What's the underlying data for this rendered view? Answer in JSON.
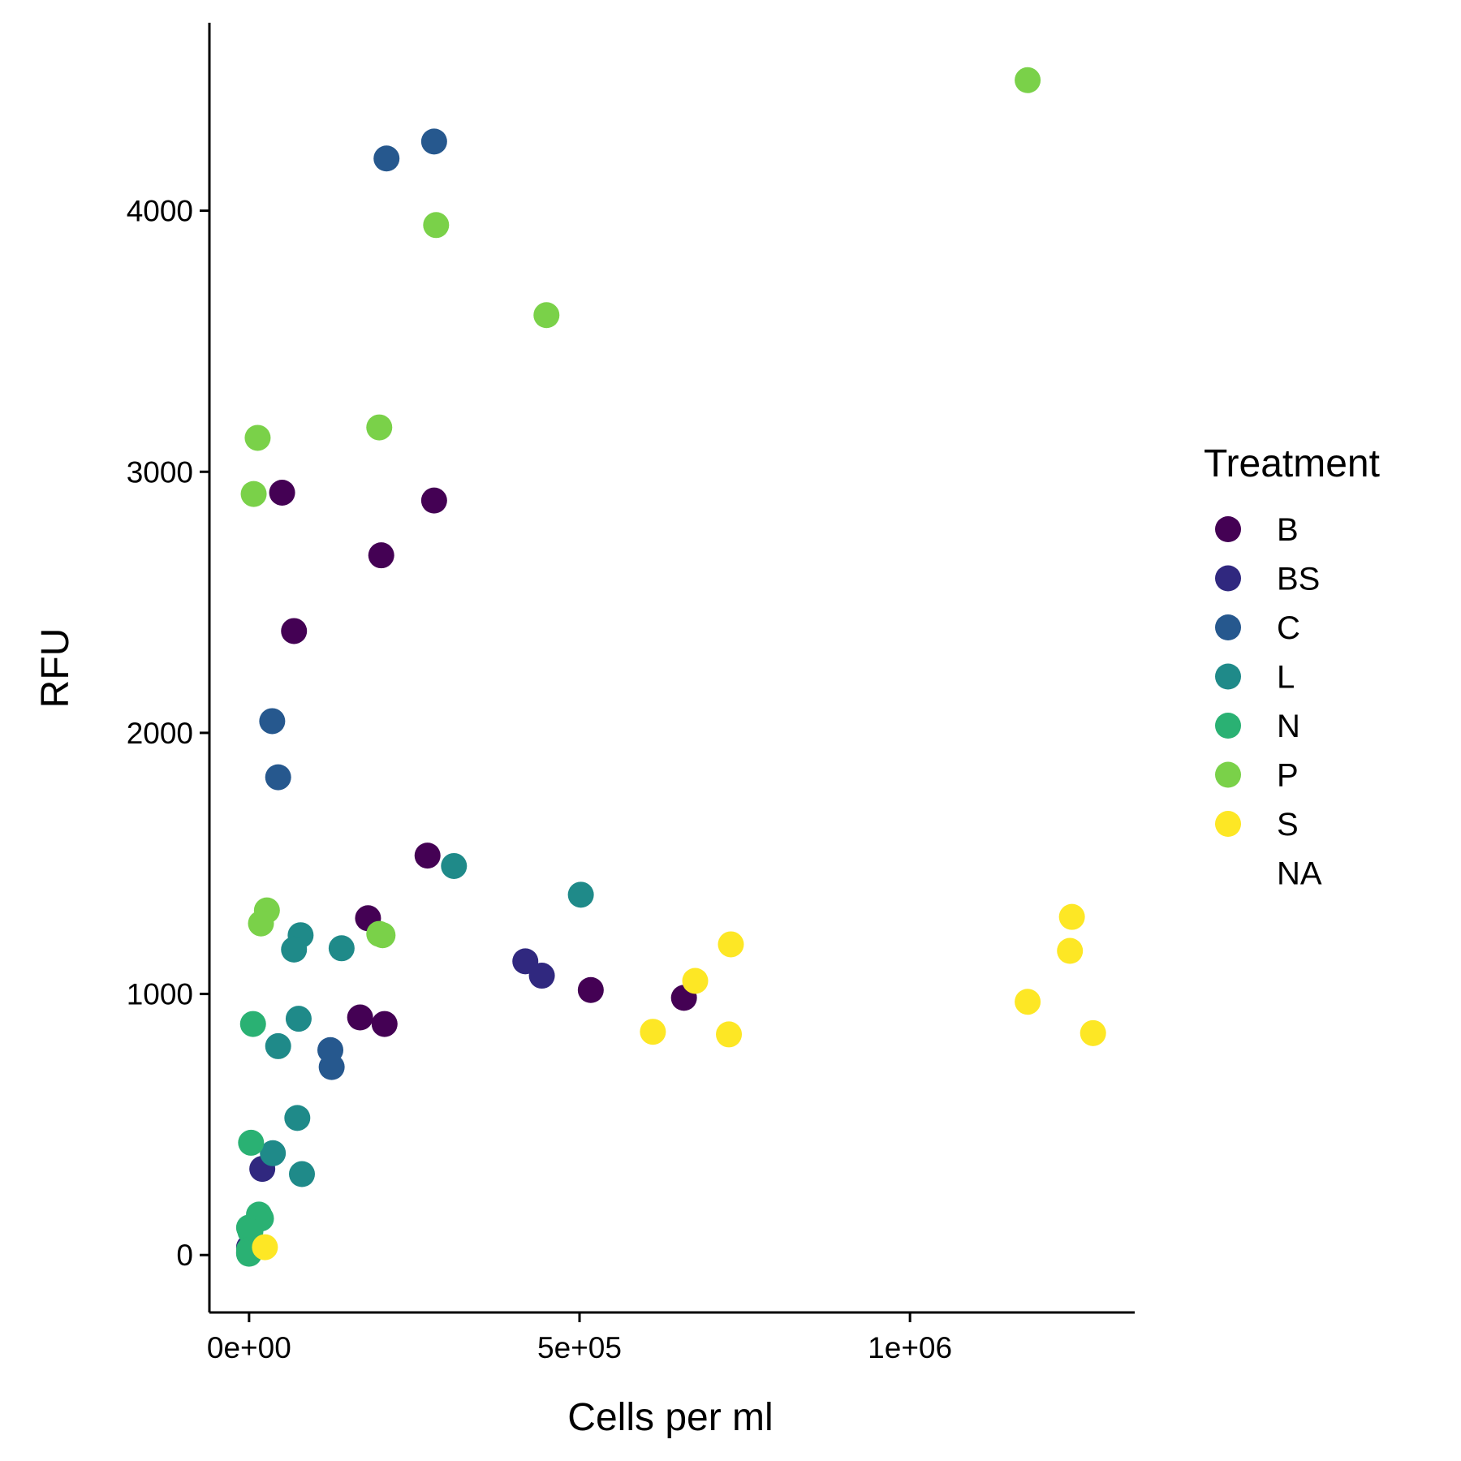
{
  "chart_data": {
    "type": "scatter",
    "xlabel": "Cells per ml",
    "ylabel": "RFU",
    "xlim": [
      -60000,
      1340000
    ],
    "ylim": [
      -220,
      4720
    ],
    "x_ticks": [
      0,
      500000,
      1000000
    ],
    "x_tick_labels": [
      "0e+00",
      "5e+05",
      "1e+06"
    ],
    "y_ticks": [
      0,
      1000,
      2000,
      3000,
      4000
    ],
    "y_tick_labels": [
      "0",
      "1000",
      "2000",
      "3000",
      "4000"
    ],
    "grid": false,
    "legend": {
      "title": "Treatment",
      "position": "right",
      "entries": [
        "B",
        "BS",
        "C",
        "L",
        "N",
        "P",
        "S",
        "NA"
      ]
    },
    "series": [
      {
        "name": "B",
        "color": "#440154",
        "points": [
          [
            50000,
            2920
          ],
          [
            280000,
            2890
          ],
          [
            200000,
            2680
          ],
          [
            68000,
            2390
          ],
          [
            270000,
            1530
          ],
          [
            180000,
            1290
          ],
          [
            168000,
            910
          ],
          [
            205000,
            885
          ],
          [
            517000,
            1015
          ],
          [
            658000,
            985
          ],
          [
            0,
            10
          ]
        ]
      },
      {
        "name": "BS",
        "color": "#30287f",
        "points": [
          [
            418000,
            1125
          ],
          [
            443000,
            1070
          ],
          [
            20000,
            330
          ],
          [
            0,
            30
          ]
        ]
      },
      {
        "name": "C",
        "color": "#26588e",
        "points": [
          [
            208000,
            4200
          ],
          [
            280000,
            4265
          ],
          [
            35000,
            2045
          ],
          [
            44000,
            1830
          ],
          [
            123000,
            785
          ],
          [
            125000,
            720
          ]
        ]
      },
      {
        "name": "L",
        "color": "#1f8a89",
        "points": [
          [
            310000,
            1490
          ],
          [
            502000,
            1380
          ],
          [
            78000,
            1225
          ],
          [
            68000,
            1170
          ],
          [
            140000,
            1175
          ],
          [
            75000,
            905
          ],
          [
            44000,
            800
          ],
          [
            73000,
            525
          ],
          [
            36000,
            390
          ],
          [
            80000,
            310
          ]
        ]
      },
      {
        "name": "N",
        "color": "#2ab173",
        "points": [
          [
            6000,
            885
          ],
          [
            3000,
            430
          ],
          [
            15000,
            155
          ],
          [
            18000,
            140
          ],
          [
            0,
            105
          ],
          [
            2000,
            90
          ],
          [
            0,
            20
          ],
          [
            0,
            5
          ]
        ]
      },
      {
        "name": "P",
        "color": "#7ad149",
        "points": [
          [
            1178000,
            4500
          ],
          [
            283000,
            3945
          ],
          [
            450000,
            3600
          ],
          [
            197000,
            3170
          ],
          [
            13000,
            3130
          ],
          [
            7000,
            2915
          ],
          [
            27000,
            1320
          ],
          [
            18000,
            1270
          ],
          [
            197000,
            1230
          ],
          [
            202000,
            1225
          ]
        ]
      },
      {
        "name": "S",
        "color": "#fde725",
        "points": [
          [
            729000,
            1190
          ],
          [
            675000,
            1050
          ],
          [
            611000,
            855
          ],
          [
            726000,
            845
          ],
          [
            1178000,
            970
          ],
          [
            1245000,
            1295
          ],
          [
            1242000,
            1165
          ],
          [
            1277000,
            850
          ],
          [
            24000,
            30
          ]
        ]
      }
    ]
  }
}
